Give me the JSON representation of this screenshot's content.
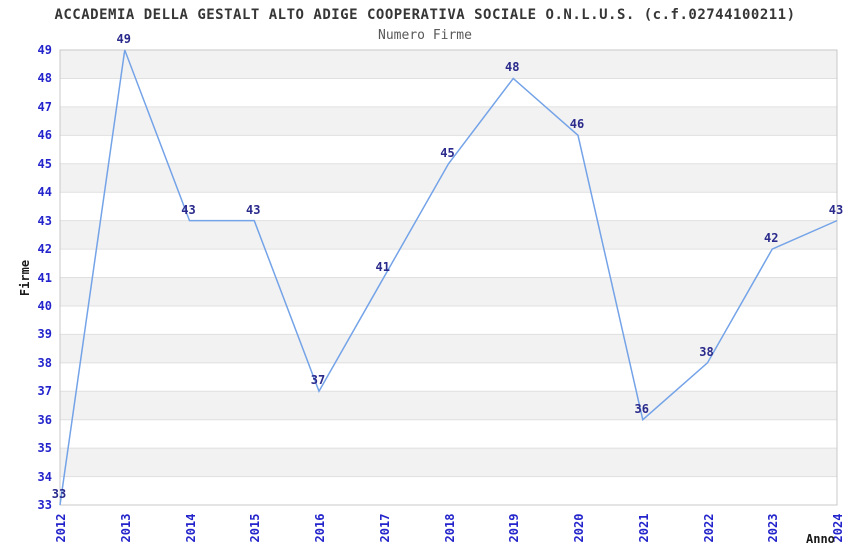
{
  "chart_data": {
    "type": "line",
    "title": "ACCADEMIA DELLA GESTALT ALTO ADIGE COOPERATIVA SOCIALE O.N.L.U.S. (c.f.02744100211)",
    "subtitle": "Numero Firme",
    "xlabel": "Anno",
    "ylabel": "Firme",
    "x": [
      "2012",
      "2013",
      "2014",
      "2015",
      "2016",
      "2017",
      "2018",
      "2019",
      "2020",
      "2021",
      "2022",
      "2023",
      "2024"
    ],
    "values": [
      33,
      49,
      43,
      43,
      37,
      41,
      45,
      48,
      46,
      36,
      38,
      42,
      43
    ],
    "ylim": [
      33,
      49
    ],
    "ytick_step": 1,
    "grid": "horizontal-unit-lines",
    "background_bands": "alternating gray/white per unit, gray starts at top band 49-48",
    "legend": "none",
    "point_labels_shown": true,
    "colors": {
      "line": "#74a3e8",
      "tick_label": "#2424cc",
      "point_label": "#2a2a8c",
      "band_gray": "#f2f2f2",
      "band_white": "#ffffff",
      "gridline": "#e0e0e0",
      "plot_border": "#c8c8c8",
      "title": "#363636",
      "subtitle": "#595959",
      "axis_title": "#1a1a1a"
    }
  }
}
